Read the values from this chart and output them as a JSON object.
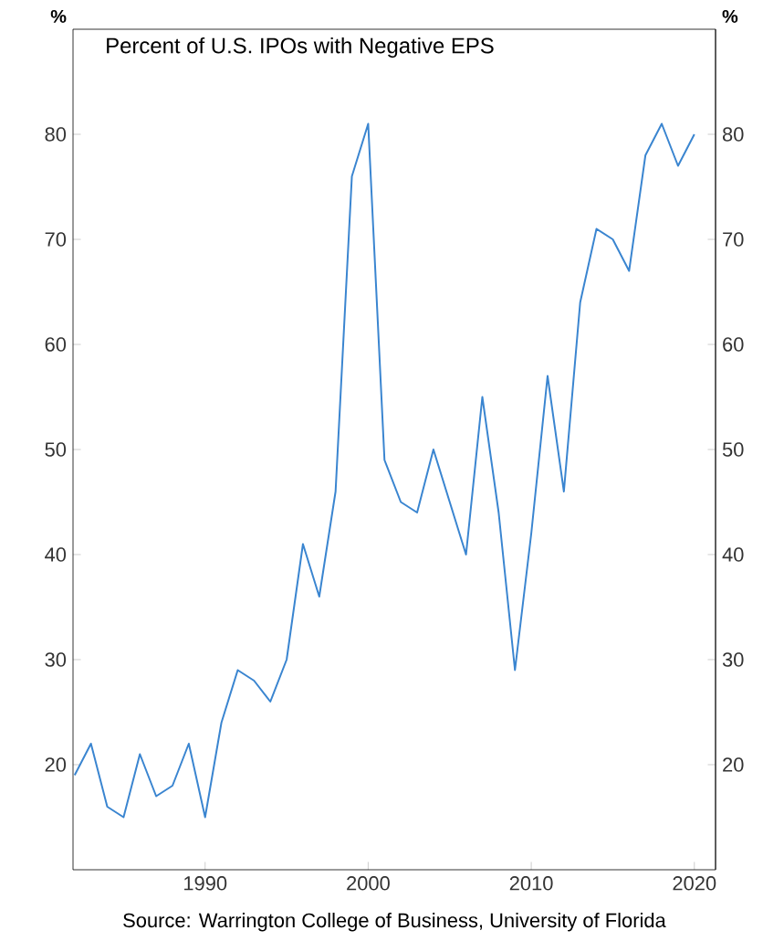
{
  "chart_data": {
    "type": "line",
    "title": "Percent of U.S. IPOs with Negative EPS",
    "ylabel": "%",
    "y2label": "%",
    "x": [
      1982,
      1983,
      1984,
      1985,
      1986,
      1987,
      1988,
      1989,
      1990,
      1991,
      1992,
      1993,
      1994,
      1995,
      1996,
      1997,
      1998,
      1999,
      2000,
      2001,
      2002,
      2003,
      2004,
      2005,
      2006,
      2007,
      2008,
      2009,
      2010,
      2011,
      2012,
      2013,
      2014,
      2015,
      2016,
      2017,
      2018,
      2019,
      2020
    ],
    "series": [
      {
        "color": "#3a85d0",
        "values": [
          19,
          22,
          16,
          15,
          21,
          17,
          18,
          22,
          15,
          24,
          29,
          28,
          26,
          30,
          41,
          36,
          46,
          76,
          81,
          49,
          45,
          44,
          50,
          45,
          40,
          55,
          44,
          29,
          42,
          57,
          46,
          64,
          71,
          70,
          67,
          78,
          81,
          77,
          80
        ]
      }
    ],
    "xlim": [
      1981.9,
      2021.3
    ],
    "xticks": [
      1990,
      2000,
      2010,
      2020
    ],
    "ylim": [
      10,
      90
    ],
    "yticks": [
      20,
      30,
      40,
      50,
      60,
      70,
      80
    ],
    "y2lim": [
      10,
      90
    ],
    "y2ticks": [
      20,
      30,
      40,
      50,
      60,
      70,
      80
    ],
    "grid": false,
    "legend": false,
    "marker": "none",
    "line_style": "solid",
    "annotations": [
      "Source: Warrington College of Business, University of Florida"
    ]
  }
}
